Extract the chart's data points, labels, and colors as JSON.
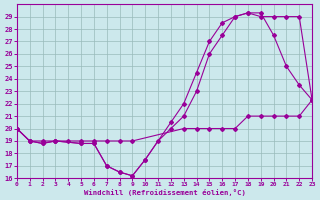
{
  "xlabel": "Windchill (Refroidissement éolien,°C)",
  "bg_color": "#cce8ec",
  "line_color": "#990099",
  "grid_color": "#99bbbb",
  "xlim": [
    0,
    23
  ],
  "ylim": [
    16,
    30
  ],
  "yticks": [
    16,
    17,
    18,
    19,
    20,
    21,
    22,
    23,
    24,
    25,
    26,
    27,
    28,
    29
  ],
  "xticks": [
    0,
    1,
    2,
    3,
    4,
    5,
    6,
    7,
    8,
    9,
    10,
    11,
    12,
    13,
    14,
    15,
    16,
    17,
    18,
    19,
    20,
    21,
    22,
    23
  ],
  "line1_x": [
    0,
    1,
    2,
    3,
    4,
    5,
    6,
    7,
    8,
    9,
    13,
    14,
    15,
    16,
    17,
    18,
    19,
    20,
    21,
    22,
    23
  ],
  "line1_y": [
    20,
    19,
    19,
    19,
    19,
    19,
    19,
    19,
    19,
    19,
    20,
    20,
    20,
    20,
    20,
    21,
    21,
    21,
    21,
    21,
    22.3
  ],
  "line2_x": [
    0,
    1,
    2,
    3,
    5,
    6,
    7,
    8,
    9,
    10,
    11,
    12,
    13,
    14,
    15,
    16,
    17,
    18,
    19,
    20,
    21,
    22,
    23
  ],
  "line2_y": [
    20,
    19,
    18.8,
    19,
    18.8,
    18.8,
    17,
    16.5,
    16.2,
    17.5,
    19,
    20,
    21,
    23,
    26,
    27.5,
    29,
    29.3,
    29.3,
    27.5,
    25,
    23.5,
    22.3
  ],
  "line3_x": [
    0,
    1,
    2,
    3,
    5,
    6,
    7,
    8,
    9,
    10,
    12,
    13,
    14,
    15,
    16,
    17,
    18,
    19,
    20,
    21,
    22,
    23
  ],
  "line3_y": [
    20,
    19,
    18.8,
    19,
    18.8,
    18.8,
    17,
    16.5,
    16.2,
    17.5,
    20.5,
    22,
    24.5,
    27,
    28.5,
    29,
    29.3,
    29,
    29,
    29,
    29,
    22.3
  ]
}
